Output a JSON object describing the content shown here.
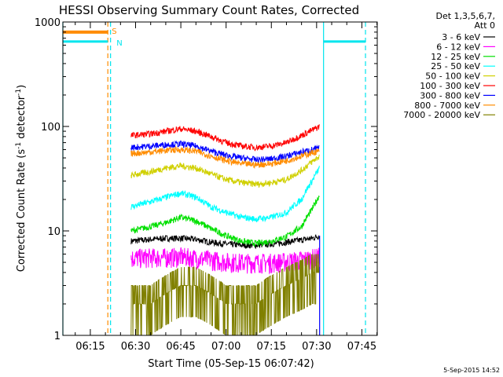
{
  "chart_data": {
    "type": "line",
    "title": "HESSI Observing Summary Count Rates, Corrected",
    "xlabel": "Start Time (05-Sep-15 06:07:42)",
    "ylabel_main": "Corrected Count Rate (s",
    "ylabel_sup1": "-1",
    "ylabel_mid": " detector",
    "ylabel_sup2": "-1",
    "ylabel_end": ")",
    "yscale": "log",
    "ylim": [
      1,
      1000
    ],
    "xlim_minutes": [
      365.9,
      470.1
    ],
    "x_ticks": [
      {
        "label": "06:15",
        "min": 375
      },
      {
        "label": "06:30",
        "min": 390
      },
      {
        "label": "06:45",
        "min": 405
      },
      {
        "label": "07:00",
        "min": 420
      },
      {
        "label": "07:15",
        "min": 435
      },
      {
        "label": "07:30",
        "min": 450
      },
      {
        "label": "07:45",
        "min": 465
      }
    ],
    "y_ticks": [
      {
        "label": "1",
        "value": 1
      },
      {
        "label": "10",
        "value": 10
      },
      {
        "label": "100",
        "value": 100
      },
      {
        "label": "1000",
        "value": 1000
      }
    ],
    "legend_header": [
      "Det 1,3,5,6,7,",
      "Att 0"
    ],
    "series": [
      {
        "name": "3 - 6 keV",
        "color": "#000000",
        "x": [
          388.5,
          395,
          400,
          405,
          410,
          415,
          420,
          425,
          430,
          435,
          440,
          445,
          448.5,
          451
        ],
        "values": [
          8,
          8.3,
          8.5,
          8.5,
          8.3,
          7.8,
          7.5,
          7.3,
          7.3,
          7.5,
          7.8,
          8.2,
          8.5,
          9
        ]
      },
      {
        "name": "6 - 12 keV",
        "color": "#ff00ff",
        "x": [
          388.5,
          395,
          400,
          405,
          410,
          415,
          420,
          425,
          430,
          435,
          440,
          445,
          448.5,
          451
        ],
        "values": [
          5.5,
          5.6,
          5.6,
          5.7,
          5.5,
          5.3,
          5.1,
          5,
          5,
          5,
          5.1,
          5.3,
          5.5,
          5.7
        ]
      },
      {
        "name": "12 - 25 keV",
        "color": "#00e000",
        "x": [
          388.5,
          395,
          400,
          405,
          410,
          415,
          420,
          425,
          430,
          435,
          440,
          445,
          448.5,
          451
        ],
        "values": [
          10,
          11,
          12,
          13.5,
          12.5,
          10.5,
          9,
          8,
          7.6,
          8,
          8.8,
          11,
          16,
          22
        ]
      },
      {
        "name": "25 - 50 keV",
        "color": "#00ffff",
        "x": [
          388.5,
          395,
          400,
          405,
          410,
          415,
          420,
          425,
          430,
          435,
          440,
          445,
          448.5,
          451
        ],
        "values": [
          17,
          19,
          21,
          23,
          21,
          17,
          15,
          13.5,
          13,
          13.5,
          15,
          20,
          30,
          40
        ]
      },
      {
        "name": "50 - 100 keV",
        "color": "#d0d000",
        "x": [
          388.5,
          395,
          400,
          405,
          410,
          415,
          420,
          425,
          430,
          435,
          440,
          445,
          448.5,
          451
        ],
        "values": [
          34,
          37,
          40,
          42,
          40,
          35,
          31,
          29,
          28,
          29,
          31,
          38,
          46,
          52
        ]
      },
      {
        "name": "100 - 300 keV",
        "color": "#ff0000",
        "x": [
          388.5,
          395,
          400,
          405,
          410,
          415,
          420,
          425,
          430,
          435,
          440,
          445,
          448.5,
          451
        ],
        "values": [
          82,
          85,
          90,
          95,
          90,
          80,
          70,
          65,
          63,
          65,
          70,
          82,
          92,
          100
        ]
      },
      {
        "name": "300 - 800 keV",
        "color": "#0000ff",
        "x": [
          388.5,
          395,
          400,
          405,
          410,
          415,
          420,
          425,
          430,
          435,
          440,
          445,
          448.5,
          451
        ],
        "values": [
          63,
          65,
          67,
          68,
          65,
          58,
          53,
          50,
          48,
          49,
          52,
          57,
          60,
          62
        ]
      },
      {
        "name": "800 - 7000 keV",
        "color": "#ff8c00",
        "x": [
          388.5,
          395,
          400,
          405,
          410,
          415,
          420,
          425,
          430,
          435,
          440,
          445,
          448.5,
          451
        ],
        "values": [
          55,
          57,
          59,
          60,
          58,
          52,
          47,
          44,
          43,
          44,
          47,
          52,
          56,
          58
        ]
      },
      {
        "name": "7000 - 20000 keV",
        "color": "#808000",
        "x": [
          388.5,
          395,
          400,
          405,
          410,
          415,
          420,
          425,
          430,
          435,
          440,
          445,
          448.5,
          451
        ],
        "values": [
          2,
          2,
          2.5,
          3,
          3,
          2.5,
          2,
          2,
          2,
          2.5,
          3,
          3.5,
          4,
          4
        ]
      }
    ],
    "markers": {
      "S_label": "S",
      "N_label": "N",
      "s_bar": {
        "x_start": 365.9,
        "x_end": 380.8,
        "value": 800,
        "color": "#ff8c00"
      },
      "n_bars": [
        {
          "x_start": 365.9,
          "x_end": 380.8,
          "value": 650,
          "color": "#00e5ee"
        },
        {
          "x_start": 452.3,
          "x_end": 466.2,
          "value": 650,
          "color": "#00e5ee"
        }
      ],
      "solid_cyan": [
        365.9,
        452.3
      ],
      "dashed_cyan": [
        381.7,
        466.2
      ],
      "dashed_orange": [
        380.8
      ],
      "data_end": 451
    },
    "grid": false,
    "legend_position": "right"
  },
  "footer": {
    "date": "5-Sep-2015 14:52"
  }
}
